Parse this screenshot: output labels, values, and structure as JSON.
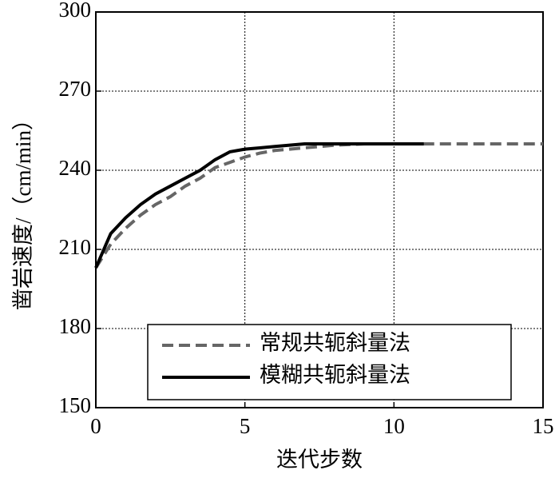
{
  "chart_data": {
    "type": "line",
    "x_label": "迭代步数",
    "y_label": "凿岩速度/（cm/min）",
    "x": [
      0,
      0.5,
      1,
      1.5,
      2,
      2.5,
      3,
      3.5,
      4,
      4.5,
      5,
      5.5,
      6,
      6.5,
      7,
      8,
      9,
      10,
      11,
      12,
      13,
      14,
      15
    ],
    "series": [
      {
        "name": "常规共轭斜量法",
        "color": "#666666",
        "dash": true,
        "values": [
          203,
          212,
          218,
          223,
          227,
          230,
          234,
          237,
          241,
          243,
          245,
          246.5,
          247.5,
          248,
          248.5,
          249.5,
          250,
          250,
          250,
          250,
          250,
          250,
          250
        ]
      },
      {
        "name": "模糊共轭斜量法",
        "color": "#000000",
        "dash": false,
        "values": [
          203,
          216,
          222,
          227,
          231,
          234,
          237,
          240,
          244,
          247,
          248,
          248.5,
          249,
          249.5,
          250,
          250,
          250,
          250,
          250,
          null,
          null,
          null,
          null
        ]
      }
    ],
    "xlim": [
      0,
      15
    ],
    "xticks": [
      0,
      5,
      10,
      15
    ],
    "ylim": [
      150,
      300
    ],
    "yticks": [
      150,
      180,
      210,
      240,
      270,
      300
    ],
    "grid": true,
    "legend": "lower left"
  }
}
